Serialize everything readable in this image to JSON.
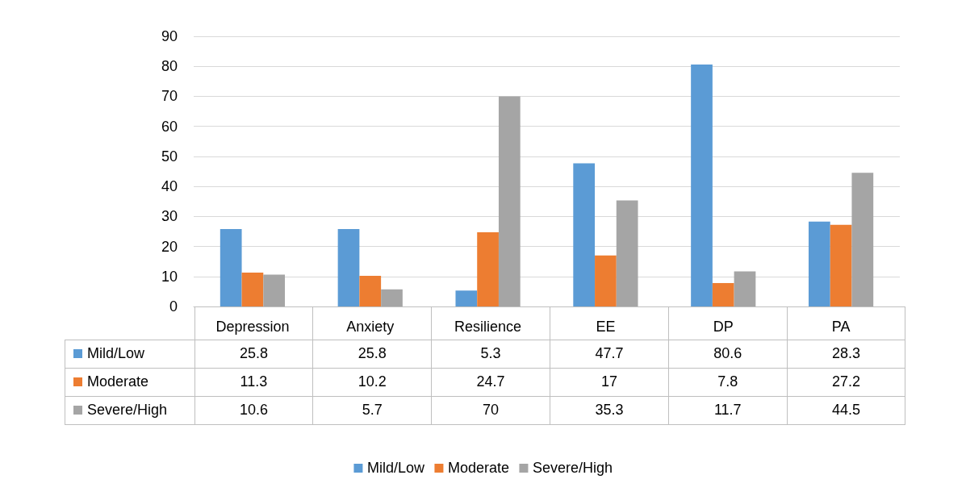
{
  "chart_data": {
    "type": "bar",
    "categories": [
      "Depression",
      "Anxiety",
      "Resilience",
      "EE",
      "DP",
      "PA"
    ],
    "series": [
      {
        "name": "Mild/Low",
        "color": "#5b9bd5",
        "values": [
          25.8,
          25.8,
          5.3,
          47.7,
          80.6,
          28.3
        ]
      },
      {
        "name": "Moderate",
        "color": "#ed7d31",
        "values": [
          11.3,
          10.2,
          24.7,
          17,
          7.8,
          27.2
        ]
      },
      {
        "name": "Severe/High",
        "color": "#a5a5a5",
        "values": [
          10.6,
          5.7,
          70,
          35.3,
          11.7,
          44.5
        ]
      }
    ],
    "ylim": [
      0,
      90
    ],
    "yticks": [
      0,
      10,
      20,
      30,
      40,
      50,
      60,
      70,
      80,
      90
    ],
    "grid": true,
    "legend": "bottom",
    "data_labels": true
  }
}
